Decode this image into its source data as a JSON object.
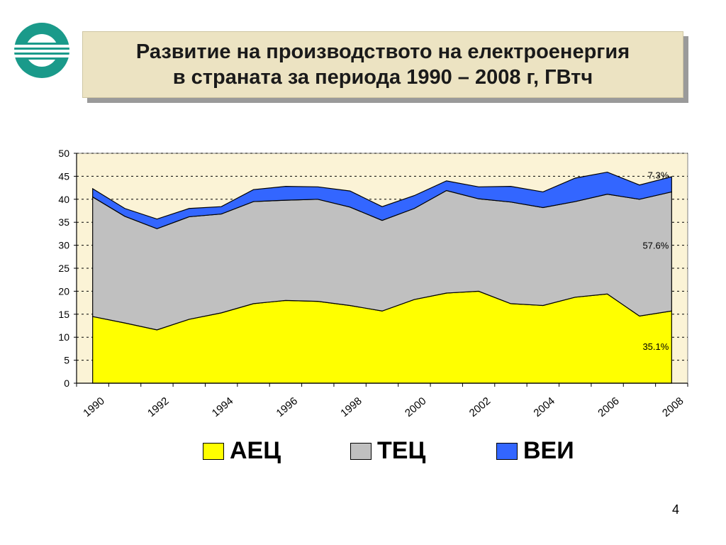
{
  "title": {
    "line1": "Развитие на производството на електроенергия",
    "line2": "в страната за периода 1990 – 2008 г, ГВтч"
  },
  "page_number": "4",
  "colors": {
    "aec": "#ffff00",
    "tec": "#c0c0c0",
    "vei": "#3366ff",
    "plot_bg": "#fbf3d6",
    "logo": "#1a9a8a"
  },
  "chart_data": {
    "type": "area",
    "stacked": true,
    "x": [
      1990,
      1991,
      1992,
      1993,
      1994,
      1995,
      1996,
      1997,
      1998,
      1999,
      2000,
      2001,
      2002,
      2003,
      2004,
      2005,
      2006,
      2007,
      2008
    ],
    "x_tick_labels": [
      "1990",
      "1992",
      "1994",
      "1996",
      "1998",
      "2000",
      "2002",
      "2004",
      "2006",
      "2008"
    ],
    "y_ticks": [
      "0",
      "5",
      "10",
      "15",
      "20",
      "25",
      "30",
      "35",
      "40",
      "45",
      "50"
    ],
    "ylim": [
      0,
      50
    ],
    "grid": "horizontal dashed",
    "legend_position": "bottom",
    "series": [
      {
        "name": "АЕЦ",
        "color_key": "aec",
        "values": [
          14.5,
          13.1,
          11.6,
          13.9,
          15.3,
          17.3,
          18.0,
          17.8,
          16.9,
          15.7,
          18.2,
          19.6,
          20.0,
          17.3,
          16.9,
          18.7,
          19.4,
          14.6,
          15.7
        ]
      },
      {
        "name": "ТЕЦ",
        "color_key": "tec",
        "values": [
          26.0,
          23.2,
          22.0,
          22.3,
          21.5,
          22.2,
          21.8,
          22.2,
          21.4,
          19.7,
          19.8,
          22.3,
          20.1,
          22.1,
          21.3,
          20.8,
          21.7,
          25.4,
          25.9
        ]
      },
      {
        "name": "ВЕИ",
        "color_key": "vei",
        "values": [
          1.8,
          1.7,
          2.1,
          1.8,
          1.6,
          2.6,
          3.0,
          2.7,
          3.5,
          3.0,
          2.8,
          2.1,
          2.6,
          3.4,
          3.4,
          5.1,
          4.8,
          3.1,
          3.3
        ]
      }
    ],
    "annotations": [
      {
        "text": "7.3%",
        "x": 2008,
        "y": 45.3
      },
      {
        "text": "57.6%",
        "x": 2008,
        "y": 30
      },
      {
        "text": "35.1%",
        "x": 2008,
        "y": 8
      }
    ]
  }
}
